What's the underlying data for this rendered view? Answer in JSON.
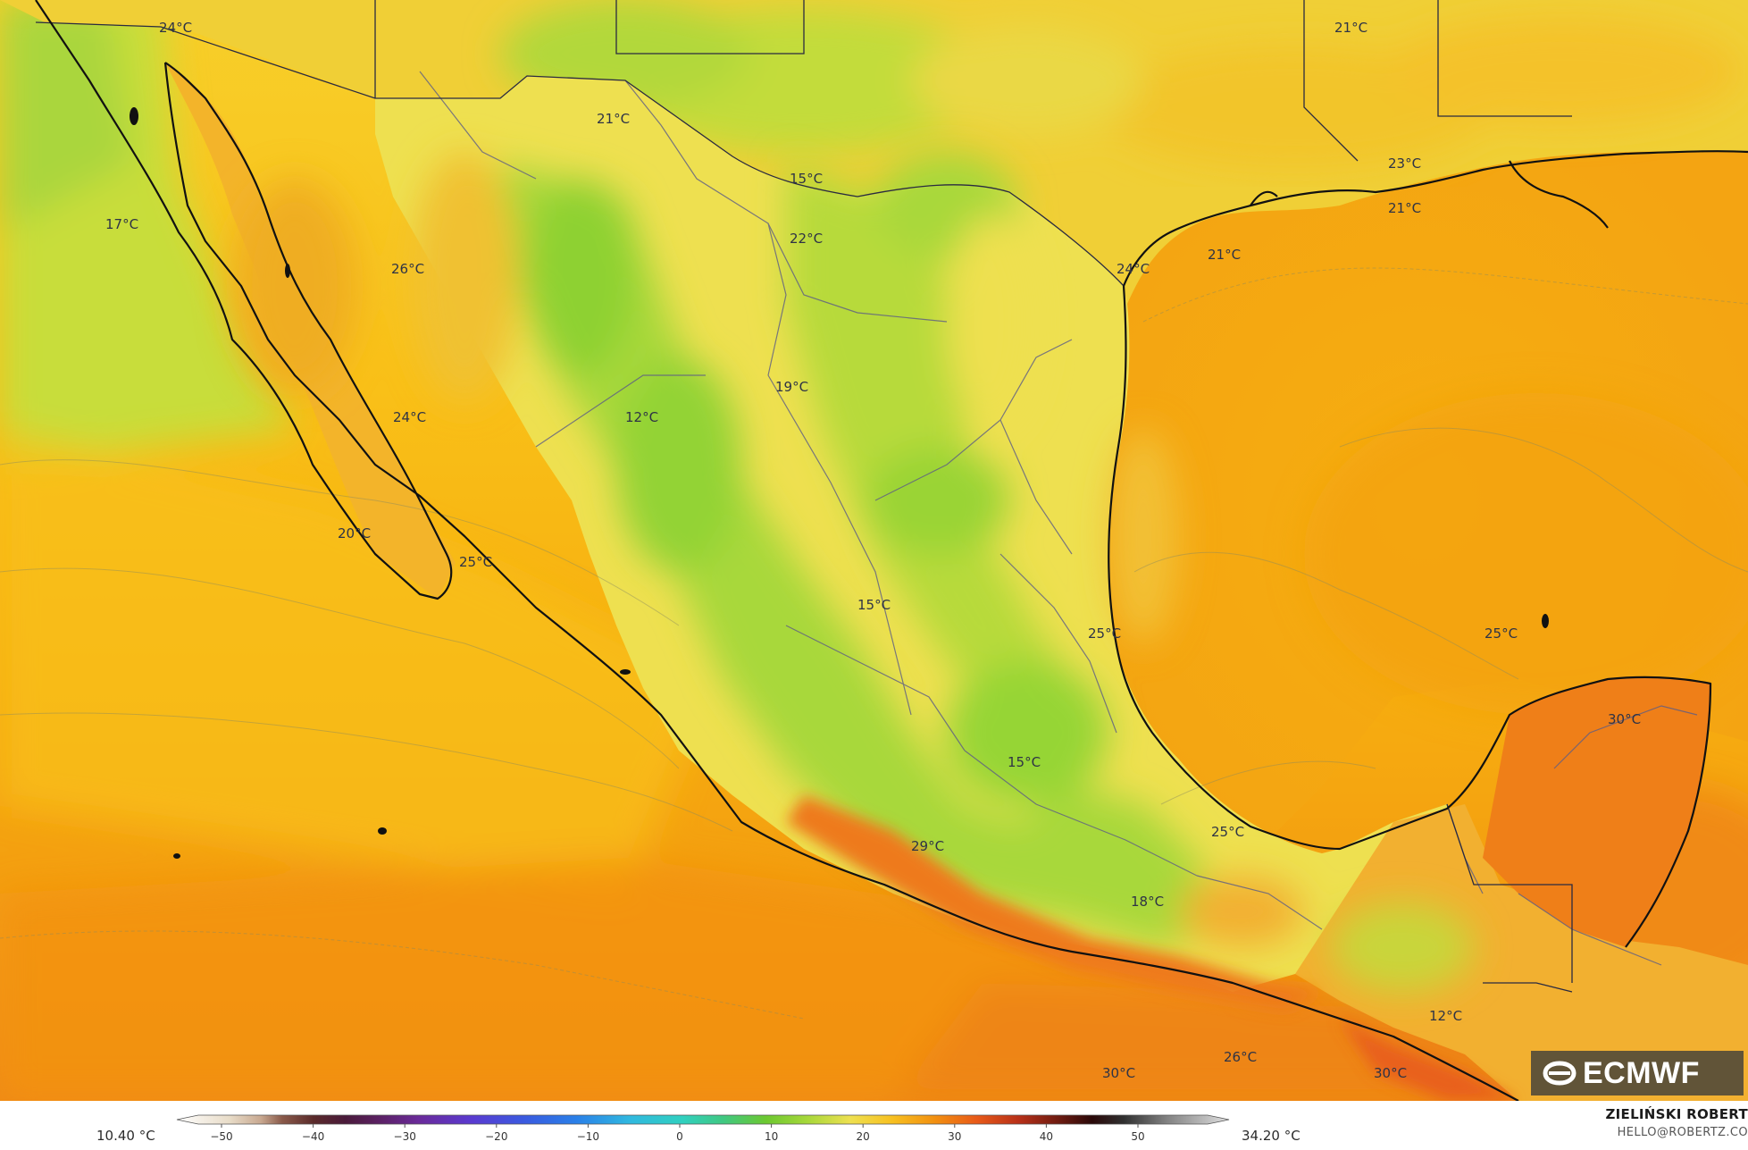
{
  "map": {
    "temperature_labels": [
      "24°C",
      "21°C",
      "21°C",
      "23°C",
      "21°C",
      "15°C",
      "17°C",
      "22°C",
      "21°C",
      "24°C",
      "26°C",
      "19°C",
      "12°C",
      "24°C",
      "20°C",
      "25°C",
      "15°C",
      "25°C",
      "25°C",
      "30°C",
      "15°C",
      "25°C",
      "29°C",
      "18°C",
      "12°C",
      "26°C",
      "30°C",
      "30°C"
    ]
  },
  "legend": {
    "min_value": "10.40 °C",
    "max_value": "34.20 °C",
    "ticks": [
      "−50",
      "−40",
      "−30",
      "−20",
      "−10",
      "0",
      "10",
      "20",
      "30",
      "40",
      "50"
    ]
  },
  "credit": {
    "name": "ZIELIŃSKI ROBERT",
    "email": "HELLO@ROBERTZ.CO"
  },
  "logo": {
    "text": "ECMWF"
  },
  "colors": {
    "ocean_warm": "#f6ad0e",
    "ocean_hot": "#f08c10",
    "highland_green": "#9ed63a",
    "coast_line": "#111111",
    "border_line": "#6a6a8a"
  }
}
